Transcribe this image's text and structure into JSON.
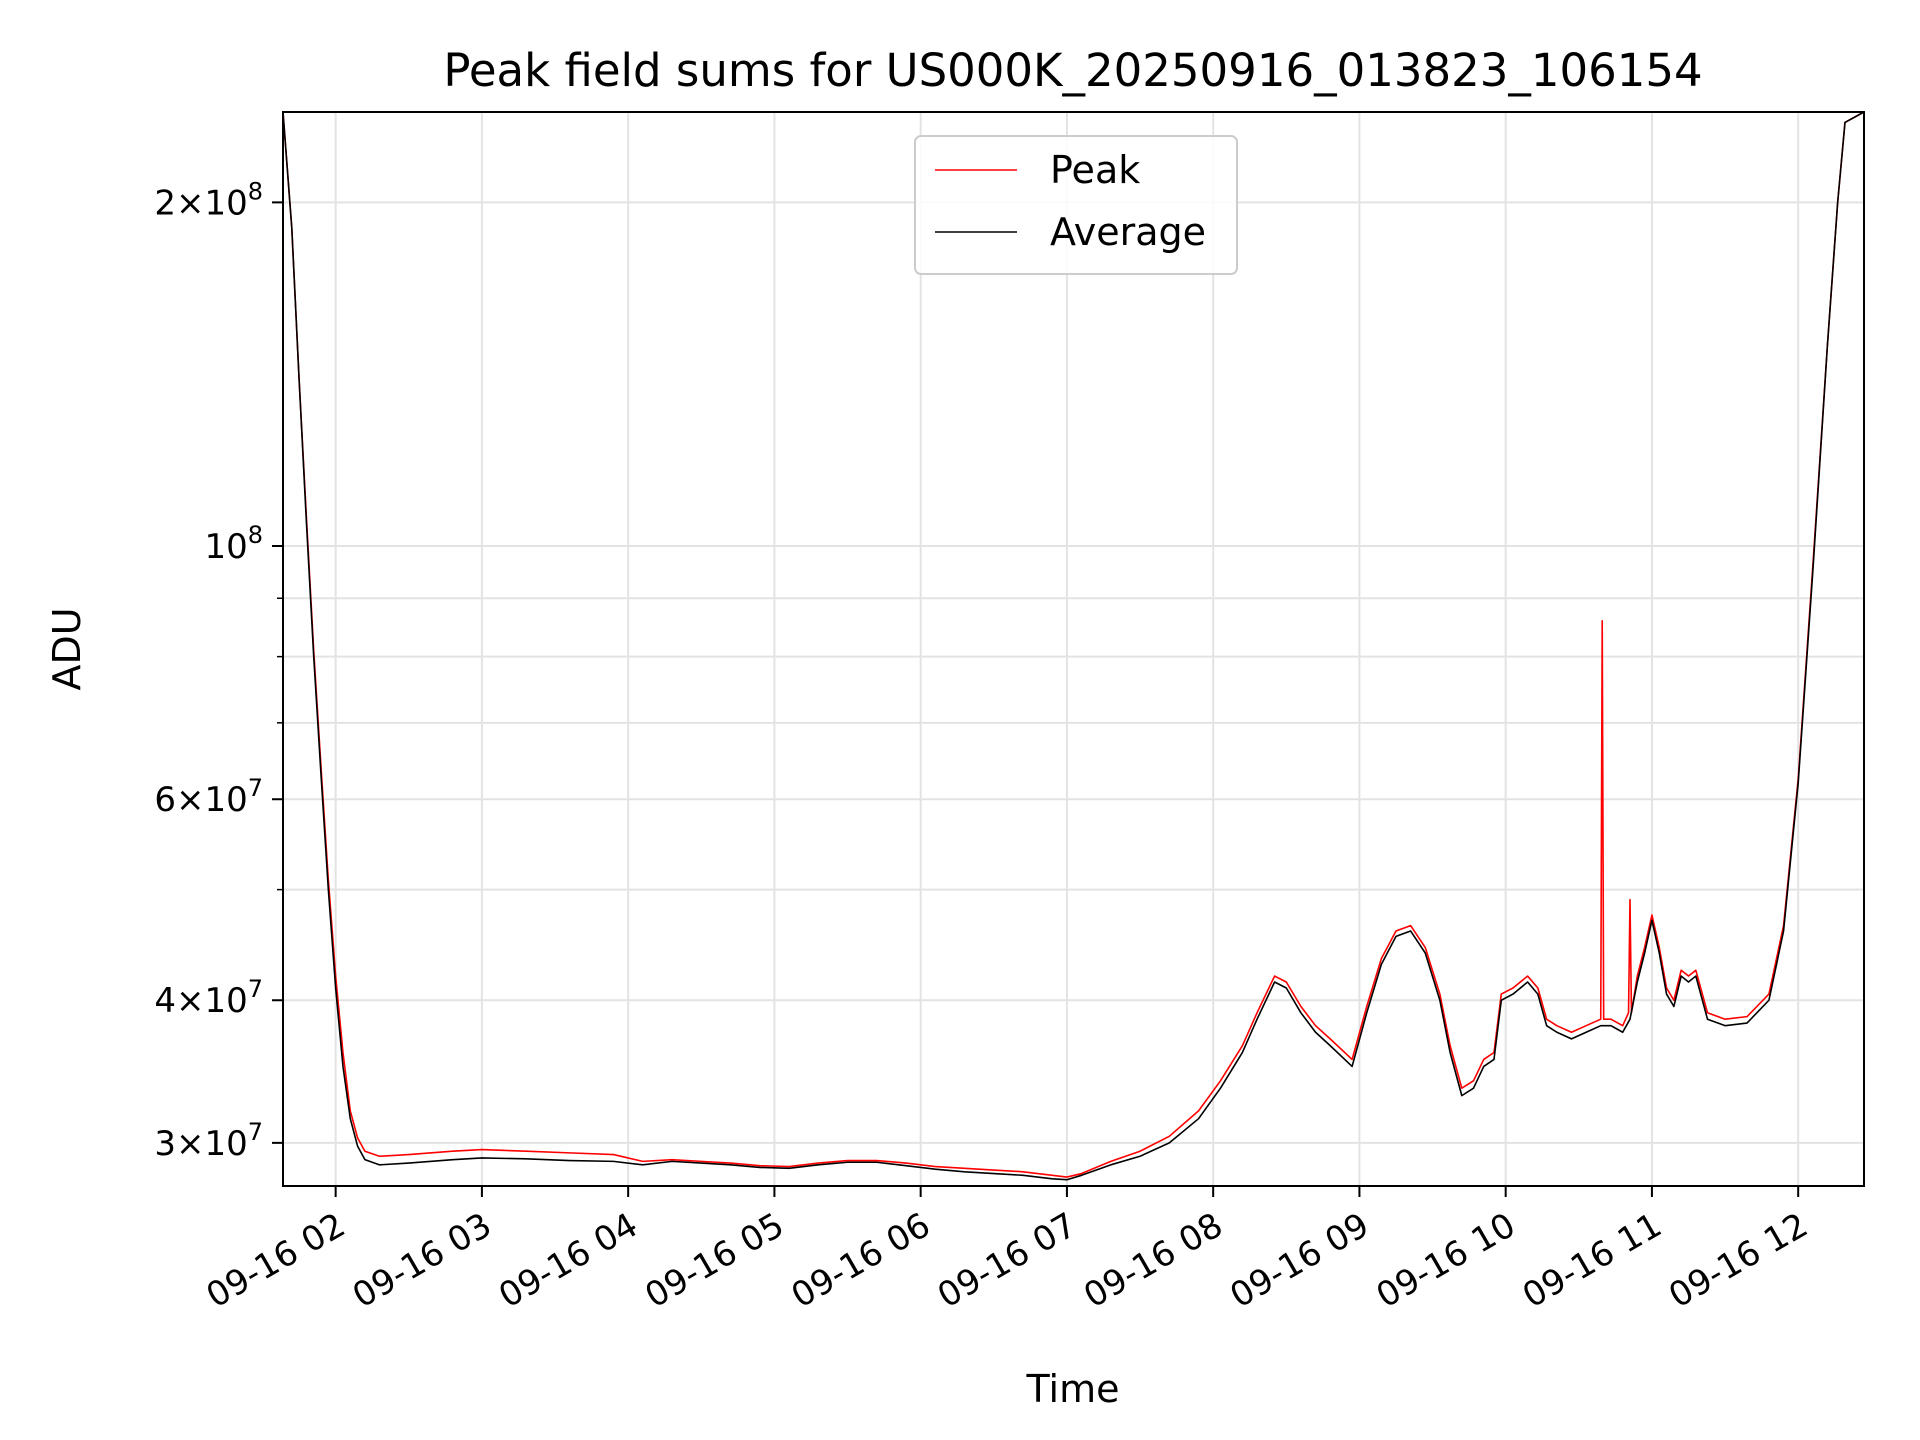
{
  "chart_data": {
    "type": "line",
    "title": "Peak field sums for US000K_20250916_013823_106154",
    "xlabel": "Time",
    "ylabel": "ADU",
    "yscale": "log",
    "grid": true,
    "legend_position": "upper-center",
    "xlim_hours": [
      1.64,
      12.45
    ],
    "ylim": [
      27500000,
      240000000
    ],
    "x_ticks": [
      {
        "hour": 2,
        "label": "09-16 02"
      },
      {
        "hour": 3,
        "label": "09-16 03"
      },
      {
        "hour": 4,
        "label": "09-16 04"
      },
      {
        "hour": 5,
        "label": "09-16 05"
      },
      {
        "hour": 6,
        "label": "09-16 06"
      },
      {
        "hour": 7,
        "label": "09-16 07"
      },
      {
        "hour": 8,
        "label": "09-16 08"
      },
      {
        "hour": 9,
        "label": "09-16 09"
      },
      {
        "hour": 10,
        "label": "09-16 10"
      },
      {
        "hour": 11,
        "label": "09-16 11"
      },
      {
        "hour": 12,
        "label": "09-16 12"
      }
    ],
    "y_major_ticks": [
      {
        "value": 30000000,
        "mantissa": "3",
        "exponent": "7"
      },
      {
        "value": 40000000,
        "mantissa": "4",
        "exponent": "7"
      },
      {
        "value": 60000000,
        "mantissa": "6",
        "exponent": "7"
      },
      {
        "value": 100000000,
        "mantissa": "",
        "exponent": "8"
      },
      {
        "value": 200000000,
        "mantissa": "2",
        "exponent": "8"
      }
    ],
    "y_minor_ticks": [
      50000000,
      70000000,
      80000000,
      90000000
    ],
    "series": [
      {
        "name": "Average",
        "color": "#000000",
        "points": [
          [
            1.64,
            240000000
          ],
          [
            1.7,
            190000000
          ],
          [
            1.75,
            140000000
          ],
          [
            1.8,
            105000000
          ],
          [
            1.85,
            80000000
          ],
          [
            1.9,
            63000000
          ],
          [
            1.95,
            50000000
          ],
          [
            2.0,
            41000000
          ],
          [
            2.05,
            35000000
          ],
          [
            2.1,
            31500000
          ],
          [
            2.15,
            29800000
          ],
          [
            2.2,
            29000000
          ],
          [
            2.3,
            28700000
          ],
          [
            2.5,
            28800000
          ],
          [
            2.8,
            29000000
          ],
          [
            3.0,
            29100000
          ],
          [
            3.3,
            29050000
          ],
          [
            3.6,
            28950000
          ],
          [
            3.9,
            28900000
          ],
          [
            4.1,
            28700000
          ],
          [
            4.3,
            28900000
          ],
          [
            4.5,
            28800000
          ],
          [
            4.7,
            28700000
          ],
          [
            4.9,
            28550000
          ],
          [
            5.1,
            28500000
          ],
          [
            5.3,
            28700000
          ],
          [
            5.5,
            28850000
          ],
          [
            5.7,
            28850000
          ],
          [
            5.9,
            28650000
          ],
          [
            6.1,
            28450000
          ],
          [
            6.3,
            28300000
          ],
          [
            6.5,
            28200000
          ],
          [
            6.7,
            28100000
          ],
          [
            6.9,
            27900000
          ],
          [
            7.0,
            27850000
          ],
          [
            7.1,
            28100000
          ],
          [
            7.3,
            28700000
          ],
          [
            7.5,
            29200000
          ],
          [
            7.7,
            30000000
          ],
          [
            7.9,
            31500000
          ],
          [
            8.05,
            33500000
          ],
          [
            8.2,
            36000000
          ],
          [
            8.3,
            38500000
          ],
          [
            8.42,
            41500000
          ],
          [
            8.5,
            41000000
          ],
          [
            8.6,
            39000000
          ],
          [
            8.7,
            37500000
          ],
          [
            8.8,
            36500000
          ],
          [
            8.95,
            35000000
          ],
          [
            9.05,
            39000000
          ],
          [
            9.15,
            43000000
          ],
          [
            9.25,
            45500000
          ],
          [
            9.35,
            46000000
          ],
          [
            9.45,
            44000000
          ],
          [
            9.55,
            40000000
          ],
          [
            9.62,
            36000000
          ],
          [
            9.7,
            33000000
          ],
          [
            9.78,
            33500000
          ],
          [
            9.85,
            35000000
          ],
          [
            9.92,
            35500000
          ],
          [
            9.97,
            40000000
          ],
          [
            10.05,
            40500000
          ],
          [
            10.15,
            41500000
          ],
          [
            10.22,
            40500000
          ],
          [
            10.28,
            38000000
          ],
          [
            10.35,
            37500000
          ],
          [
            10.45,
            37000000
          ],
          [
            10.55,
            37500000
          ],
          [
            10.65,
            38000000
          ],
          [
            10.72,
            38000000
          ],
          [
            10.8,
            37500000
          ],
          [
            10.85,
            38500000
          ],
          [
            10.9,
            41500000
          ],
          [
            10.95,
            44000000
          ],
          [
            11.0,
            47000000
          ],
          [
            11.05,
            44000000
          ],
          [
            11.1,
            40500000
          ],
          [
            11.15,
            39500000
          ],
          [
            11.2,
            42000000
          ],
          [
            11.25,
            41500000
          ],
          [
            11.3,
            42000000
          ],
          [
            11.38,
            38500000
          ],
          [
            11.5,
            38000000
          ],
          [
            11.65,
            38200000
          ],
          [
            11.8,
            40000000
          ],
          [
            11.9,
            46000000
          ],
          [
            12.0,
            62000000
          ],
          [
            12.1,
            95000000
          ],
          [
            12.2,
            150000000
          ],
          [
            12.27,
            200000000
          ],
          [
            12.32,
            235000000
          ],
          [
            12.45,
            240000000
          ]
        ]
      },
      {
        "name": "Peak",
        "color": "#ff0000",
        "points": [
          [
            1.64,
            240000000
          ],
          [
            1.7,
            190000000
          ],
          [
            1.75,
            140000000
          ],
          [
            1.8,
            106000000
          ],
          [
            1.85,
            81000000
          ],
          [
            1.9,
            64000000
          ],
          [
            1.95,
            51000000
          ],
          [
            2.0,
            42000000
          ],
          [
            2.05,
            36000000
          ],
          [
            2.1,
            32000000
          ],
          [
            2.15,
            30300000
          ],
          [
            2.2,
            29500000
          ],
          [
            2.3,
            29200000
          ],
          [
            2.5,
            29300000
          ],
          [
            2.8,
            29500000
          ],
          [
            3.0,
            29600000
          ],
          [
            3.3,
            29500000
          ],
          [
            3.6,
            29400000
          ],
          [
            3.9,
            29300000
          ],
          [
            4.1,
            28900000
          ],
          [
            4.3,
            29000000
          ],
          [
            4.5,
            28900000
          ],
          [
            4.7,
            28800000
          ],
          [
            4.9,
            28650000
          ],
          [
            5.1,
            28600000
          ],
          [
            5.3,
            28800000
          ],
          [
            5.5,
            28950000
          ],
          [
            5.7,
            28950000
          ],
          [
            5.9,
            28800000
          ],
          [
            6.1,
            28600000
          ],
          [
            6.3,
            28500000
          ],
          [
            6.5,
            28400000
          ],
          [
            6.7,
            28300000
          ],
          [
            6.9,
            28100000
          ],
          [
            7.0,
            28000000
          ],
          [
            7.1,
            28200000
          ],
          [
            7.3,
            28900000
          ],
          [
            7.5,
            29500000
          ],
          [
            7.7,
            30400000
          ],
          [
            7.9,
            32000000
          ],
          [
            8.05,
            34000000
          ],
          [
            8.2,
            36500000
          ],
          [
            8.3,
            39000000
          ],
          [
            8.42,
            42000000
          ],
          [
            8.5,
            41500000
          ],
          [
            8.6,
            39500000
          ],
          [
            8.7,
            38000000
          ],
          [
            8.8,
            37000000
          ],
          [
            8.95,
            35500000
          ],
          [
            9.05,
            39500000
          ],
          [
            9.15,
            43500000
          ],
          [
            9.25,
            46000000
          ],
          [
            9.35,
            46500000
          ],
          [
            9.45,
            44500000
          ],
          [
            9.55,
            40500000
          ],
          [
            9.62,
            36500000
          ],
          [
            9.7,
            33500000
          ],
          [
            9.78,
            34000000
          ],
          [
            9.85,
            35500000
          ],
          [
            9.92,
            36000000
          ],
          [
            9.97,
            40500000
          ],
          [
            10.05,
            41000000
          ],
          [
            10.15,
            42000000
          ],
          [
            10.22,
            41000000
          ],
          [
            10.28,
            38500000
          ],
          [
            10.35,
            38000000
          ],
          [
            10.45,
            37500000
          ],
          [
            10.55,
            38000000
          ],
          [
            10.65,
            38500000
          ],
          [
            10.66,
            86000000
          ],
          [
            10.67,
            38500000
          ],
          [
            10.72,
            38500000
          ],
          [
            10.8,
            38000000
          ],
          [
            10.84,
            39000000
          ],
          [
            10.85,
            49000000
          ],
          [
            10.86,
            39000000
          ],
          [
            10.9,
            42000000
          ],
          [
            10.95,
            44500000
          ],
          [
            11.0,
            47500000
          ],
          [
            11.05,
            44500000
          ],
          [
            11.1,
            41000000
          ],
          [
            11.15,
            40000000
          ],
          [
            11.2,
            42500000
          ],
          [
            11.25,
            42000000
          ],
          [
            11.3,
            42500000
          ],
          [
            11.38,
            39000000
          ],
          [
            11.5,
            38500000
          ],
          [
            11.65,
            38700000
          ],
          [
            11.8,
            40500000
          ],
          [
            11.9,
            46500000
          ],
          [
            12.0,
            62500000
          ],
          [
            12.1,
            96000000
          ],
          [
            12.2,
            150000000
          ],
          [
            12.27,
            200000000
          ],
          [
            12.32,
            235000000
          ],
          [
            12.45,
            240000000
          ]
        ]
      }
    ]
  }
}
